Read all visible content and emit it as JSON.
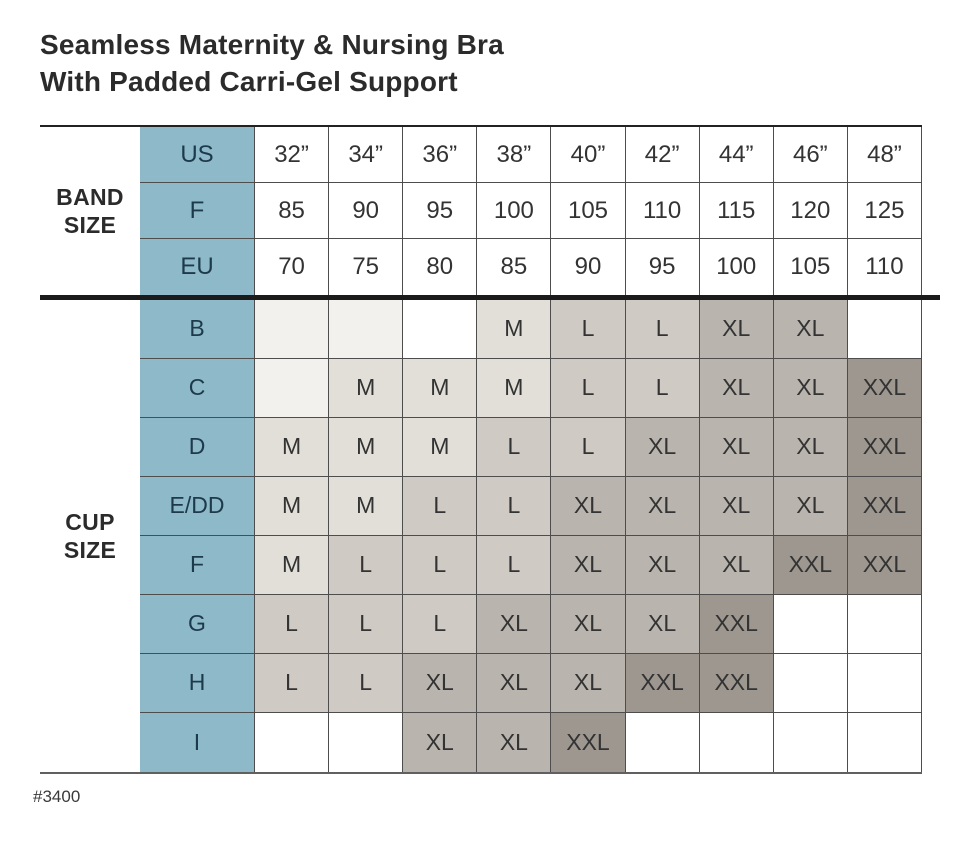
{
  "title": {
    "line1": "Seamless Maternity & Nursing Bra",
    "line2": "With Padded Carri-Gel Support"
  },
  "table": {
    "band_section": {
      "label": "BAND SIZE",
      "rows": [
        {
          "header": "US",
          "values": [
            "32”",
            "34”",
            "36”",
            "38”",
            "40”",
            "42”",
            "44”",
            "46”",
            "48”"
          ]
        },
        {
          "header": "F",
          "values": [
            "85",
            "90",
            "95",
            "100",
            "105",
            "110",
            "115",
            "120",
            "125"
          ]
        },
        {
          "header": "EU",
          "values": [
            "70",
            "75",
            "80",
            "85",
            "90",
            "95",
            "100",
            "105",
            "110"
          ]
        }
      ]
    },
    "cup_section": {
      "label": "CUP SIZE",
      "rows": [
        {
          "header": "B",
          "cells": [
            {
              "v": "",
              "tint": true
            },
            {
              "v": "",
              "tint": true
            },
            {
              "v": ""
            },
            {
              "v": "M"
            },
            {
              "v": "L"
            },
            {
              "v": "L"
            },
            {
              "v": "XL"
            },
            {
              "v": "XL"
            },
            {
              "v": ""
            }
          ]
        },
        {
          "header": "C",
          "cells": [
            {
              "v": "",
              "tint": true
            },
            {
              "v": "M"
            },
            {
              "v": "M"
            },
            {
              "v": "M"
            },
            {
              "v": "L"
            },
            {
              "v": "L"
            },
            {
              "v": "XL"
            },
            {
              "v": "XL"
            },
            {
              "v": "XXL"
            }
          ]
        },
        {
          "header": "D",
          "cells": [
            {
              "v": "M"
            },
            {
              "v": "M"
            },
            {
              "v": "M"
            },
            {
              "v": "L"
            },
            {
              "v": "L"
            },
            {
              "v": "XL"
            },
            {
              "v": "XL"
            },
            {
              "v": "XL"
            },
            {
              "v": "XXL"
            }
          ]
        },
        {
          "header": "E/DD",
          "cells": [
            {
              "v": "M"
            },
            {
              "v": "M"
            },
            {
              "v": "L"
            },
            {
              "v": "L"
            },
            {
              "v": "XL"
            },
            {
              "v": "XL"
            },
            {
              "v": "XL"
            },
            {
              "v": "XL"
            },
            {
              "v": "XXL"
            }
          ]
        },
        {
          "header": "F",
          "cells": [
            {
              "v": "M"
            },
            {
              "v": "L"
            },
            {
              "v": "L"
            },
            {
              "v": "L"
            },
            {
              "v": "XL"
            },
            {
              "v": "XL"
            },
            {
              "v": "XL"
            },
            {
              "v": "XXL"
            },
            {
              "v": "XXL"
            }
          ]
        },
        {
          "header": "G",
          "cells": [
            {
              "v": "L"
            },
            {
              "v": "L"
            },
            {
              "v": "L"
            },
            {
              "v": "XL"
            },
            {
              "v": "XL"
            },
            {
              "v": "XL"
            },
            {
              "v": "XXL"
            },
            {
              "v": ""
            },
            {
              "v": ""
            }
          ]
        },
        {
          "header": "H",
          "cells": [
            {
              "v": "L"
            },
            {
              "v": "L"
            },
            {
              "v": "XL"
            },
            {
              "v": "XL"
            },
            {
              "v": "XL"
            },
            {
              "v": "XXL"
            },
            {
              "v": "XXL"
            },
            {
              "v": ""
            },
            {
              "v": ""
            }
          ]
        },
        {
          "header": "I",
          "cells": [
            {
              "v": ""
            },
            {
              "v": ""
            },
            {
              "v": "XL"
            },
            {
              "v": "XL"
            },
            {
              "v": "XXL"
            },
            {
              "v": ""
            },
            {
              "v": ""
            },
            {
              "v": ""
            },
            {
              "v": ""
            }
          ]
        }
      ]
    }
  },
  "footer": {
    "style_number": "#3400"
  },
  "colors": {
    "header_blue": "#8db9c9",
    "header_text": "#1d3a4a",
    "cell_tint": "#f3f1ed",
    "cell_m": "#e2dfd8",
    "cell_l": "#cfcbc4",
    "cell_xl": "#b9b5ae",
    "cell_xxl": "#9d9790"
  }
}
